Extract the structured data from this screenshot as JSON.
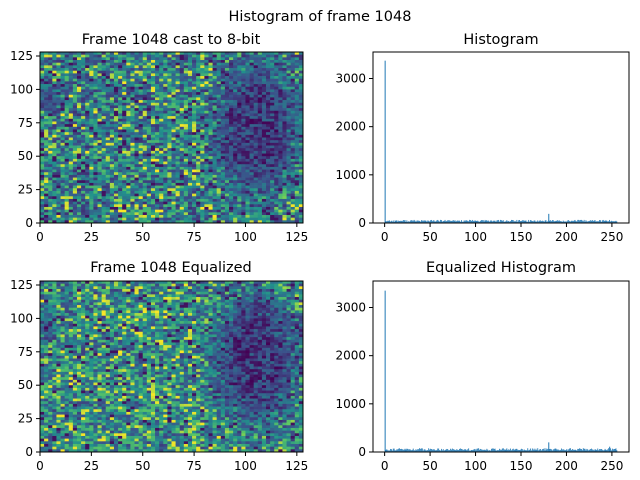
{
  "figure": {
    "suptitle": "Histogram of frame 1048"
  },
  "colors": {
    "bar": "#1f77b4",
    "viridis": [
      "#440154",
      "#3b528b",
      "#21918c",
      "#5ec962",
      "#fde725"
    ]
  },
  "chart_data": [
    {
      "id": "img_orig",
      "type": "heatmap",
      "title": "Frame 1048 cast to 8-bit",
      "xlim": [
        0,
        128
      ],
      "ylim": [
        0,
        128
      ],
      "xticks": [
        0,
        25,
        50,
        75,
        100,
        125
      ],
      "yticks": [
        0,
        25,
        50,
        75,
        100,
        125
      ],
      "colormap": "viridis"
    },
    {
      "id": "hist_orig",
      "type": "bar",
      "title": "Histogram",
      "xlim": [
        -12.8,
        268.8
      ],
      "ylim": [
        0,
        3550
      ],
      "xticks": [
        0,
        50,
        100,
        150,
        200,
        250
      ],
      "yticks": [
        0,
        1000,
        2000,
        3000
      ],
      "spikes": [
        {
          "x": 0,
          "y": 3370
        },
        {
          "x": 180,
          "y": 190
        }
      ],
      "baseline": 45,
      "bins": 256
    },
    {
      "id": "img_eq",
      "type": "heatmap",
      "title": "Frame 1048 Equalized",
      "xlim": [
        0,
        128
      ],
      "ylim": [
        0,
        128
      ],
      "xticks": [
        0,
        25,
        50,
        75,
        100,
        125
      ],
      "yticks": [
        0,
        25,
        50,
        75,
        100,
        125
      ],
      "colormap": "viridis"
    },
    {
      "id": "hist_eq",
      "type": "bar",
      "title": "Equalized Histogram",
      "xlim": [
        -12.8,
        268.8
      ],
      "ylim": [
        0,
        3550
      ],
      "xticks": [
        0,
        50,
        100,
        150,
        200,
        250
      ],
      "yticks": [
        0,
        1000,
        2000,
        3000
      ],
      "spikes": [
        {
          "x": 0,
          "y": 3350
        },
        {
          "x": 180,
          "y": 200
        },
        {
          "x": 247,
          "y": 110
        }
      ],
      "baseline": 55,
      "bins": 256
    }
  ]
}
